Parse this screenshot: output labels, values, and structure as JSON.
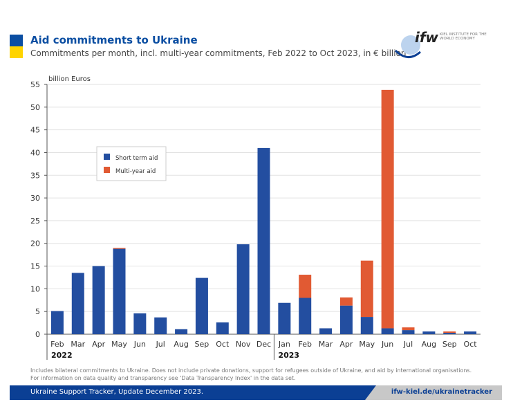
{
  "header": {
    "title": "Aid commitments to Ukraine",
    "subtitle": "Commitments per month, incl. multi-year commitments, Feb 2022 to Oct 2023, in € billion"
  },
  "logo": {
    "text": "ifw",
    "institute": "KIEL INSTITUTE FOR THE WORLD ECONOMY"
  },
  "colors": {
    "short": "#234ea0",
    "multi": "#e15a33",
    "brand": "#0b3f94",
    "flag_blue": "#0b4ea2",
    "flag_yellow": "#ffd400"
  },
  "chart_data": {
    "type": "bar",
    "stacked": true,
    "ylabel": "billion Euros",
    "ylim": [
      0,
      55
    ],
    "yticks": [
      0,
      5,
      10,
      15,
      20,
      25,
      30,
      35,
      40,
      45,
      50,
      55
    ],
    "grid": true,
    "legend_placement": "upper-left",
    "categories": [
      "Feb",
      "Mar",
      "Apr",
      "May",
      "Jun",
      "Jul",
      "Aug",
      "Sep",
      "Oct",
      "Nov",
      "Dec",
      "Jan",
      "Feb",
      "Mar",
      "Apr",
      "May",
      "Jun",
      "Jul",
      "Aug",
      "Sep",
      "Oct"
    ],
    "year_labels": [
      {
        "label": "2022",
        "start_index": 0
      },
      {
        "label": "2023",
        "start_index": 11
      }
    ],
    "series": [
      {
        "name": "Short term aid",
        "values": [
          5.1,
          13.5,
          15.0,
          18.8,
          4.6,
          3.7,
          1.1,
          12.4,
          2.6,
          19.8,
          41.0,
          6.9,
          8.0,
          1.3,
          6.3,
          3.8,
          1.3,
          0.9,
          0.6,
          0.3,
          0.6
        ]
      },
      {
        "name": "Multi-year aid",
        "values": [
          0,
          0,
          0,
          0.2,
          0,
          0,
          0,
          0,
          0,
          0,
          0,
          0,
          5.1,
          0,
          1.8,
          12.4,
          52.5,
          0.6,
          0,
          0.3,
          0
        ]
      }
    ]
  },
  "footnote": [
    "Includes bilateral commitments to Ukraine. Does not include private donations, support for refugees outside of Ukraine, and aid by international organisations.",
    "For information on data quality and transparency see 'Data Transparency Index' in the data set."
  ],
  "footer": {
    "text": "Ukraine Support Tracker, Update December 2023.",
    "url": "ifw-kiel.de/ukrainetracker"
  }
}
